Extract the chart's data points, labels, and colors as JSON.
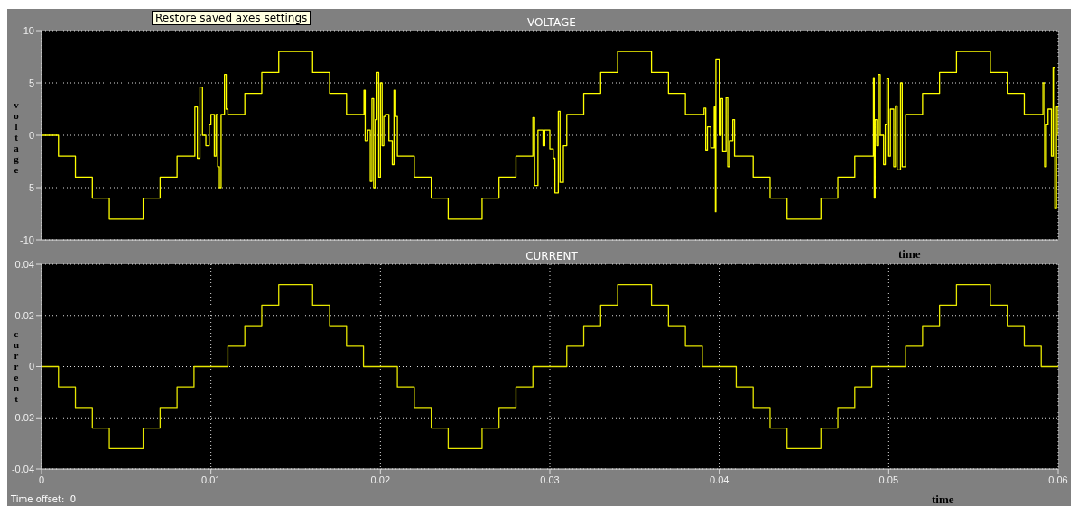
{
  "chart_data": [
    {
      "type": "step",
      "title": "VOLTAGE",
      "ylabel": "voltage",
      "xlabel": "time",
      "annotations": [
        "Restore saved axes settings"
      ],
      "xlim": [
        0,
        0.06
      ],
      "xticks": [
        0,
        0.01,
        0.02,
        0.03,
        0.04,
        0.05,
        0.06
      ],
      "ylim": [
        -10,
        10
      ],
      "yticks": [
        -10,
        -5,
        0,
        5,
        10
      ],
      "grid": true,
      "tick_labels": "y",
      "series": [
        {
          "color": "#ffff00",
          "x": [
            0,
            0.001,
            0.002,
            0.003,
            0.004,
            0.006,
            0.007,
            0.008,
            0.00905,
            0.0092,
            0.00935,
            0.0095,
            0.0097,
            0.0099,
            0.01,
            0.0102,
            0.0103,
            0.0104,
            0.0105,
            0.0106,
            0.0108,
            0.0109,
            0.011,
            0.012,
            0.013,
            0.014,
            0.016,
            0.017,
            0.018,
            0.01903,
            0.0191,
            0.01925,
            0.0194,
            0.0195,
            0.0196,
            0.0197,
            0.0198,
            0.0199,
            0.02,
            0.0201,
            0.0202,
            0.0203,
            0.0205,
            0.0207,
            0.0208,
            0.0209,
            0.021,
            0.022,
            0.023,
            0.024,
            0.026,
            0.027,
            0.028,
            0.029,
            0.0291,
            0.0293,
            0.0296,
            0.0297,
            0.03,
            0.0302,
            0.0303,
            0.0305,
            0.0306,
            0.0308,
            0.031,
            0.032,
            0.033,
            0.034,
            0.036,
            0.037,
            0.038,
            0.0391,
            0.0392,
            0.0393,
            0.0395,
            0.0397,
            0.03977,
            0.0398,
            0.04,
            0.0401,
            0.0402,
            0.0404,
            0.0405,
            0.0406,
            0.0408,
            0.0409,
            0.041,
            0.042,
            0.043,
            0.044,
            0.046,
            0.047,
            0.048,
            0.0491,
            0.04915,
            0.0492,
            0.0493,
            0.0494,
            0.0495,
            0.0497,
            0.0498,
            0.0499,
            0.05,
            0.0501,
            0.0503,
            0.0504,
            0.0505,
            0.0507,
            0.0508,
            0.051,
            0.052,
            0.053,
            0.054,
            0.056,
            0.057,
            0.058,
            0.0591,
            0.0592,
            0.0593,
            0.0594,
            0.0596,
            0.0597,
            0.0598,
            0.0599,
            0.06
          ],
          "values": [
            0,
            -2,
            -4,
            -6,
            -8,
            -6,
            -4,
            -2,
            2.7,
            -2.2,
            4.6,
            0,
            -1,
            1,
            2,
            -2,
            2,
            -3,
            -5,
            2,
            5.8,
            2.5,
            2,
            4,
            6,
            8,
            6,
            4,
            2,
            4.3,
            -0.5,
            0.5,
            -4.4,
            3.5,
            -5,
            1.5,
            6,
            -4,
            5,
            -1,
            1.8,
            2,
            -0.5,
            -2.8,
            4.3,
            1.8,
            -2,
            -4,
            -6,
            -8,
            -6,
            -4,
            -2,
            1.7,
            -4.8,
            0.5,
            -1,
            0.5,
            -1.3,
            -2.2,
            -5.5,
            2.3,
            -4.5,
            -1,
            2,
            4,
            6,
            8,
            6,
            4,
            2,
            2.6,
            -1.4,
            0.8,
            -1.2,
            2.7,
            -7.3,
            7.3,
            0,
            3.5,
            -1.5,
            3.6,
            -3,
            -0.5,
            1.5,
            -2,
            -2,
            -4,
            -6,
            -8,
            -6,
            -4,
            -2,
            5.5,
            -6,
            1.5,
            -1,
            5.8,
            0,
            -2.8,
            1,
            5.4,
            -2,
            2.5,
            -3,
            2.8,
            -3.3,
            5,
            -3,
            2,
            4,
            6,
            8,
            6,
            4,
            2,
            5,
            -3,
            1,
            2.5,
            -2,
            6.5,
            -7,
            2.7,
            0
          ]
        }
      ]
    },
    {
      "type": "step",
      "title": "CURRENT",
      "ylabel": "current",
      "xlabel": "time",
      "annotations": [
        "Time offset:  0"
      ],
      "xlim": [
        0,
        0.06
      ],
      "xticks": [
        0,
        0.01,
        0.02,
        0.03,
        0.04,
        0.05,
        0.06
      ],
      "ylim": [
        -0.04,
        0.04
      ],
      "yticks": [
        -0.04,
        -0.02,
        0,
        0.02,
        0.04
      ],
      "grid": true,
      "series": [
        {
          "color": "#e6e600",
          "x": [
            0,
            0.001,
            0.002,
            0.003,
            0.004,
            0.006,
            0.007,
            0.008,
            0.009,
            0.011,
            0.012,
            0.013,
            0.014,
            0.016,
            0.017,
            0.018,
            0.019,
            0.021,
            0.022,
            0.023,
            0.024,
            0.026,
            0.027,
            0.028,
            0.029,
            0.031,
            0.032,
            0.033,
            0.034,
            0.036,
            0.037,
            0.038,
            0.039,
            0.041,
            0.042,
            0.043,
            0.044,
            0.046,
            0.047,
            0.048,
            0.049,
            0.051,
            0.052,
            0.053,
            0.054,
            0.056,
            0.057,
            0.058,
            0.059,
            0.06
          ],
          "values": [
            0,
            -0.008,
            -0.016,
            -0.024,
            -0.032,
            -0.024,
            -0.016,
            -0.008,
            0,
            0.008,
            0.016,
            0.024,
            0.032,
            0.024,
            0.016,
            0.008,
            0,
            -0.008,
            -0.016,
            -0.024,
            -0.032,
            -0.024,
            -0.016,
            -0.008,
            0,
            0.008,
            0.016,
            0.024,
            0.032,
            0.024,
            0.016,
            0.008,
            0,
            -0.008,
            -0.016,
            -0.024,
            -0.032,
            -0.024,
            -0.016,
            -0.008,
            0,
            0.008,
            0.016,
            0.024,
            0.032,
            0.024,
            0.016,
            0.008,
            0,
            0
          ]
        }
      ]
    }
  ]
}
